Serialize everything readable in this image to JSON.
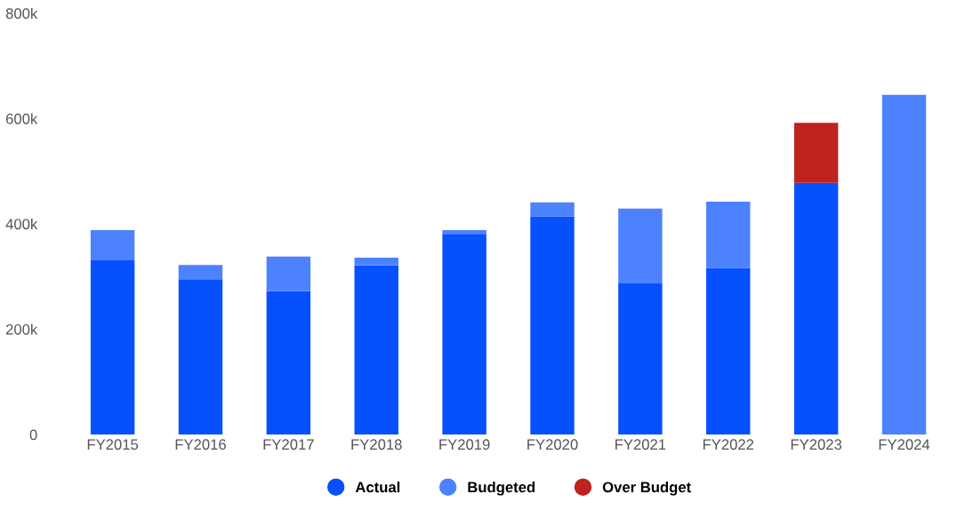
{
  "chart_data": {
    "type": "bar",
    "stacked": true,
    "categories": [
      "FY2015",
      "FY2016",
      "FY2017",
      "FY2018",
      "FY2019",
      "FY2020",
      "FY2021",
      "FY2022",
      "FY2023",
      "FY2024"
    ],
    "series": [
      {
        "name": "Actual",
        "color": "#0650fe",
        "values": [
          331000,
          295000,
          272000,
          321000,
          381000,
          414000,
          287000,
          316000,
          478000,
          null
        ]
      },
      {
        "name": "Budgeted",
        "color": "#4d82ff",
        "values": [
          57000,
          27000,
          66000,
          15000,
          7000,
          27000,
          142000,
          126000,
          null,
          645000
        ]
      },
      {
        "name": "Over Budget",
        "color": "#c0221e",
        "values": [
          null,
          null,
          null,
          null,
          null,
          null,
          null,
          null,
          114000,
          null
        ]
      }
    ],
    "ylim": [
      0,
      800000
    ],
    "yticks": [
      {
        "value": 0,
        "label": "0"
      },
      {
        "value": 200000,
        "label": "200k"
      },
      {
        "value": 400000,
        "label": "400k"
      },
      {
        "value": 600000,
        "label": "600k"
      },
      {
        "value": 800000,
        "label": "800k"
      }
    ],
    "grid": false,
    "legend": "bottom"
  }
}
